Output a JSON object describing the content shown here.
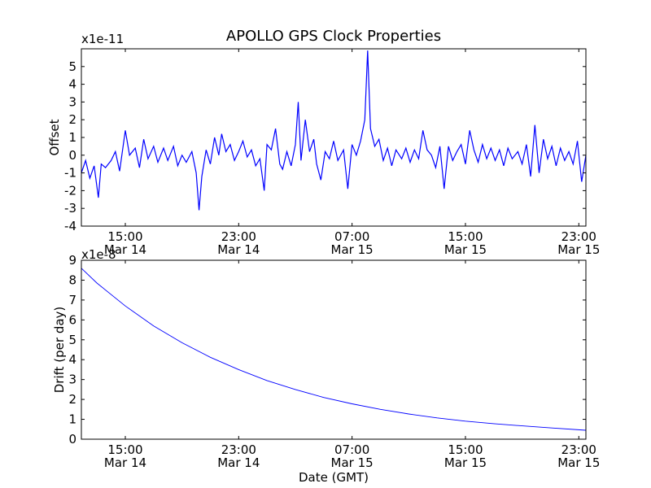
{
  "chart_data": {
    "type": "line",
    "title": "APOLLO GPS Clock Properties",
    "x_tick_labels": [
      {
        "time": "15:00",
        "date": "Mar 14",
        "t_hours": 15
      },
      {
        "time": "23:00",
        "date": "Mar 14",
        "t_hours": 23
      },
      {
        "time": "07:00",
        "date": "Mar 15",
        "t_hours": 31
      },
      {
        "time": "15:00",
        "date": "Mar 15",
        "t_hours": 39
      },
      {
        "time": "23:00",
        "date": "Mar 15",
        "t_hours": 47
      }
    ],
    "xlim_hours": [
      11.9,
      47.5
    ],
    "xlabel": "Date (GMT)",
    "subplots": [
      {
        "name": "offset",
        "ylabel": "Offset",
        "multiplier": "x1e-11",
        "ylim": [
          -4,
          6
        ],
        "yticks": [
          -4,
          -3,
          -2,
          -1,
          0,
          1,
          2,
          3,
          4,
          5
        ],
        "series_color": "#0000ff",
        "series": {
          "name": "Offset",
          "points": [
            [
              11.9,
              -1.0
            ],
            [
              12.2,
              -0.3
            ],
            [
              12.5,
              -1.3
            ],
            [
              12.8,
              -0.6
            ],
            [
              13.1,
              -2.4
            ],
            [
              13.3,
              -0.5
            ],
            [
              13.6,
              -0.7
            ],
            [
              14.0,
              -0.3
            ],
            [
              14.3,
              0.2
            ],
            [
              14.6,
              -0.9
            ],
            [
              15.0,
              1.4
            ],
            [
              15.3,
              0.0
            ],
            [
              15.7,
              0.4
            ],
            [
              16.0,
              -0.7
            ],
            [
              16.3,
              0.9
            ],
            [
              16.6,
              -0.2
            ],
            [
              17.0,
              0.5
            ],
            [
              17.3,
              -0.4
            ],
            [
              17.7,
              0.4
            ],
            [
              18.0,
              -0.3
            ],
            [
              18.4,
              0.5
            ],
            [
              18.7,
              -0.6
            ],
            [
              19.0,
              0.0
            ],
            [
              19.3,
              -0.4
            ],
            [
              19.7,
              0.2
            ],
            [
              20.0,
              -1.0
            ],
            [
              20.2,
              -3.1
            ],
            [
              20.4,
              -1.2
            ],
            [
              20.7,
              0.3
            ],
            [
              21.0,
              -0.5
            ],
            [
              21.3,
              1.0
            ],
            [
              21.6,
              0.0
            ],
            [
              21.8,
              1.2
            ],
            [
              22.1,
              0.2
            ],
            [
              22.4,
              0.6
            ],
            [
              22.7,
              -0.3
            ],
            [
              23.0,
              0.2
            ],
            [
              23.3,
              0.8
            ],
            [
              23.6,
              -0.1
            ],
            [
              23.9,
              0.3
            ],
            [
              24.2,
              -0.6
            ],
            [
              24.5,
              -0.2
            ],
            [
              24.8,
              -2.0
            ],
            [
              25.0,
              0.6
            ],
            [
              25.3,
              0.3
            ],
            [
              25.6,
              1.5
            ],
            [
              25.9,
              -0.5
            ],
            [
              26.1,
              -0.8
            ],
            [
              26.4,
              0.2
            ],
            [
              26.7,
              -0.6
            ],
            [
              27.0,
              0.6
            ],
            [
              27.2,
              3.0
            ],
            [
              27.4,
              -0.3
            ],
            [
              27.7,
              2.0
            ],
            [
              28.0,
              0.2
            ],
            [
              28.3,
              0.9
            ],
            [
              28.5,
              -0.5
            ],
            [
              28.8,
              -1.4
            ],
            [
              29.1,
              0.2
            ],
            [
              29.4,
              -0.2
            ],
            [
              29.7,
              0.8
            ],
            [
              30.0,
              -0.3
            ],
            [
              30.4,
              0.3
            ],
            [
              30.7,
              -1.9
            ],
            [
              31.0,
              0.6
            ],
            [
              31.3,
              0.0
            ],
            [
              31.6,
              0.8
            ],
            [
              31.9,
              2.0
            ],
            [
              32.1,
              5.9
            ],
            [
              32.3,
              1.5
            ],
            [
              32.6,
              0.5
            ],
            [
              32.9,
              0.9
            ],
            [
              33.2,
              -0.3
            ],
            [
              33.5,
              0.4
            ],
            [
              33.8,
              -0.6
            ],
            [
              34.1,
              0.3
            ],
            [
              34.5,
              -0.2
            ],
            [
              34.8,
              0.4
            ],
            [
              35.1,
              -0.4
            ],
            [
              35.4,
              0.3
            ],
            [
              35.7,
              -0.2
            ],
            [
              36.0,
              1.4
            ],
            [
              36.3,
              0.3
            ],
            [
              36.6,
              0.0
            ],
            [
              36.9,
              -0.7
            ],
            [
              37.2,
              0.5
            ],
            [
              37.5,
              -1.9
            ],
            [
              37.8,
              0.5
            ],
            [
              38.1,
              -0.3
            ],
            [
              38.4,
              0.2
            ],
            [
              38.7,
              0.6
            ],
            [
              39.0,
              -0.5
            ],
            [
              39.3,
              1.4
            ],
            [
              39.6,
              0.3
            ],
            [
              39.9,
              -0.4
            ],
            [
              40.2,
              0.6
            ],
            [
              40.5,
              -0.2
            ],
            [
              40.8,
              0.4
            ],
            [
              41.1,
              -0.3
            ],
            [
              41.4,
              0.3
            ],
            [
              41.7,
              -0.6
            ],
            [
              42.0,
              0.4
            ],
            [
              42.3,
              -0.2
            ],
            [
              42.7,
              0.2
            ],
            [
              43.0,
              -0.5
            ],
            [
              43.3,
              0.6
            ],
            [
              43.6,
              -1.2
            ],
            [
              43.9,
              1.7
            ],
            [
              44.2,
              -1.0
            ],
            [
              44.5,
              0.9
            ],
            [
              44.8,
              -0.2
            ],
            [
              45.1,
              0.5
            ],
            [
              45.4,
              -0.6
            ],
            [
              45.7,
              0.4
            ],
            [
              46.0,
              -0.3
            ],
            [
              46.3,
              0.2
            ],
            [
              46.6,
              -0.5
            ],
            [
              46.9,
              0.8
            ],
            [
              47.2,
              -1.5
            ],
            [
              47.5,
              0.0
            ]
          ]
        }
      },
      {
        "name": "drift",
        "ylabel": "Drift (per day)",
        "multiplier": "x1e-8",
        "ylim": [
          0,
          9
        ],
        "yticks": [
          0,
          1,
          2,
          3,
          4,
          5,
          6,
          7,
          8,
          9
        ],
        "series_color": "#0000ff",
        "series": {
          "name": "Drift",
          "points": [
            [
              11.9,
              8.6
            ],
            [
              13.0,
              7.85
            ],
            [
              15.0,
              6.7
            ],
            [
              17.0,
              5.7
            ],
            [
              19.0,
              4.85
            ],
            [
              21.0,
              4.12
            ],
            [
              23.0,
              3.5
            ],
            [
              25.0,
              2.95
            ],
            [
              27.0,
              2.5
            ],
            [
              29.0,
              2.1
            ],
            [
              31.0,
              1.78
            ],
            [
              33.0,
              1.5
            ],
            [
              35.0,
              1.27
            ],
            [
              37.0,
              1.07
            ],
            [
              39.0,
              0.91
            ],
            [
              41.0,
              0.78
            ],
            [
              43.0,
              0.67
            ],
            [
              45.0,
              0.57
            ],
            [
              47.5,
              0.45
            ]
          ]
        }
      }
    ]
  }
}
